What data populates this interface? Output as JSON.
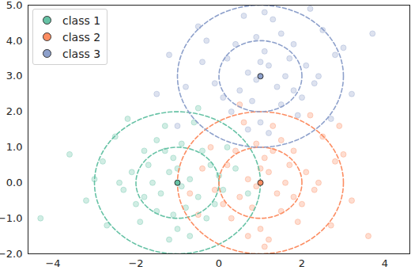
{
  "chart_data": {
    "type": "scatter",
    "xlim": [
      -4.6,
      4.6
    ],
    "ylim": [
      -2,
      5
    ],
    "xticks": [
      -4,
      -2,
      0,
      2,
      4
    ],
    "yticks": [
      -2,
      -1,
      0,
      1,
      2,
      3,
      4,
      5
    ],
    "grid": false,
    "legend": "upper left",
    "circle_radii": [
      1,
      2
    ],
    "series": [
      {
        "name": "class 1",
        "color": "#66c2a5",
        "center": [
          -1,
          0
        ],
        "x": [
          -1.2,
          -0.5,
          -1.8,
          -2.3,
          -0.9,
          -1.5,
          -0.2,
          -1.0,
          -2.8,
          -0.7,
          -1.3,
          -1.9,
          0.1,
          -0.4,
          -2.1,
          -1.6,
          -0.8,
          -3.2,
          -1.1,
          -0.3,
          -2.5,
          -1.4,
          0.4,
          -0.6,
          -2.0,
          -1.7,
          -0.9,
          -3.6,
          -1.2,
          0.2,
          -2.7,
          -0.1,
          -1.5,
          -4.3,
          -1.0,
          -2.2,
          0.7,
          -0.5,
          -1.8,
          -3.0,
          -1.3,
          -0.7,
          -2.4,
          0.0,
          -1.1
        ],
        "y": [
          0.3,
          -0.4,
          0.9,
          -0.2,
          1.1,
          -0.8,
          0.5,
          -1.3,
          0.6,
          0.1,
          1.6,
          -1.1,
          -0.2,
          0.9,
          0.3,
          0.0,
          -0.7,
          -0.5,
          0.7,
          -1.0,
          1.3,
          -0.3,
          0.4,
          1.7,
          -0.6,
          0.5,
          -0.1,
          0.8,
          -1.6,
          1.0,
          -1.2,
          -0.6,
          1.2,
          -1.0,
          0.4,
          1.8,
          -0.3,
          2.1,
          -0.4,
          0.1,
          0.9,
          -1.5,
          0.0,
          0.2,
          -0.9
        ]
      },
      {
        "name": "class 2",
        "color": "#fc8d62",
        "center": [
          1,
          0
        ],
        "x": [
          1.2,
          0.5,
          1.8,
          2.3,
          0.9,
          1.5,
          0.2,
          1.0,
          2.8,
          0.7,
          1.3,
          1.9,
          -0.1,
          0.4,
          2.1,
          1.6,
          0.8,
          3.2,
          1.1,
          0.3,
          2.5,
          1.4,
          -0.4,
          0.6,
          2.0,
          1.7,
          0.9,
          3.6,
          1.2,
          -0.2,
          2.7,
          0.1,
          1.5,
          3.0,
          1.0,
          2.2,
          -0.7,
          0.5,
          1.8,
          2.4,
          1.3,
          0.7,
          -0.5,
          1.1,
          2.9
        ],
        "y": [
          0.3,
          -0.4,
          0.9,
          -0.2,
          1.1,
          -0.8,
          0.5,
          -1.3,
          0.6,
          0.1,
          1.6,
          -1.1,
          -0.2,
          0.9,
          0.3,
          0.0,
          -0.7,
          -0.5,
          0.7,
          -1.0,
          1.3,
          -0.3,
          0.4,
          1.7,
          -0.6,
          0.5,
          -0.1,
          -1.5,
          -1.6,
          1.0,
          -1.2,
          -0.6,
          1.2,
          0.8,
          0.4,
          1.9,
          -0.3,
          2.2,
          -0.4,
          0.0,
          0.9,
          -1.5,
          -0.9,
          -1.8,
          1.6
        ]
      },
      {
        "name": "class 3",
        "color": "#8da0cb",
        "center": [
          1,
          3
        ],
        "x": [
          1.2,
          0.5,
          1.8,
          2.3,
          0.9,
          1.5,
          0.2,
          1.0,
          2.8,
          0.7,
          1.3,
          1.9,
          -0.1,
          0.4,
          2.1,
          1.6,
          0.8,
          3.2,
          1.1,
          0.3,
          2.5,
          1.4,
          -0.4,
          0.6,
          2.0,
          1.7,
          0.9,
          3.7,
          1.2,
          -0.3,
          2.7,
          0.1,
          1.5,
          3.0,
          1.0,
          2.2,
          -0.8,
          -1.2,
          1.8,
          2.4,
          -1.0,
          -0.5,
          0.7,
          1.1,
          -1.5
        ],
        "y": [
          3.3,
          2.6,
          3.9,
          2.8,
          4.1,
          2.2,
          3.5,
          1.7,
          3.6,
          3.1,
          4.6,
          1.9,
          2.8,
          3.9,
          3.3,
          3.0,
          2.3,
          2.5,
          3.7,
          2.0,
          4.3,
          2.7,
          3.4,
          4.7,
          2.4,
          3.5,
          2.9,
          4.2,
          1.4,
          4.0,
          1.8,
          2.4,
          4.2,
          3.8,
          3.4,
          4.9,
          2.7,
          3.6,
          2.6,
          3.0,
          1.6,
          4.4,
          1.5,
          4.8,
          2.5
        ]
      }
    ]
  }
}
